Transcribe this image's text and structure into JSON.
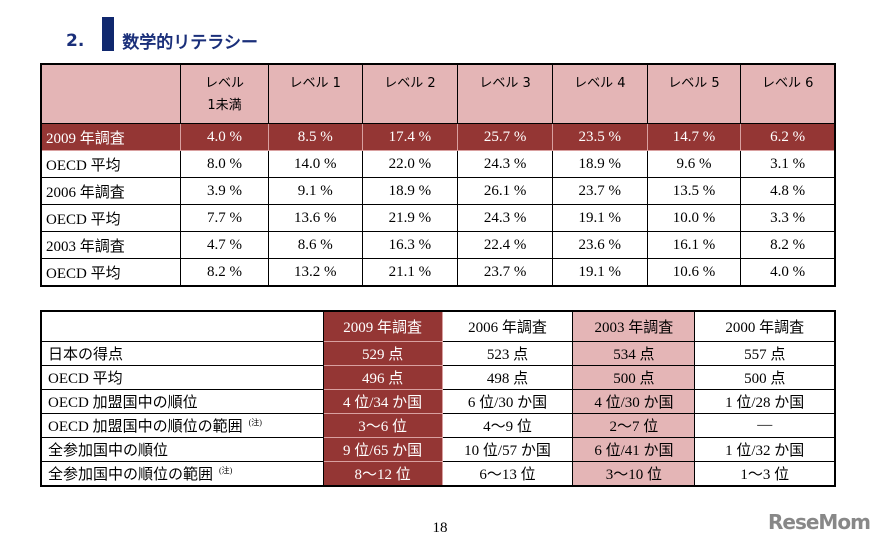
{
  "heading": {
    "number": "2.",
    "title": "数学的リテラシー"
  },
  "table1": {
    "headers": [
      "",
      "レベル\n1未満",
      "レベル 1",
      "レベル 2",
      "レベル 3",
      "レベル 4",
      "レベル 5",
      "レベル 6"
    ],
    "header_lines": [
      [
        "レベル",
        "1未満"
      ]
    ],
    "rows": [
      [
        "2009 年調査",
        "4.0 %",
        "8.5 %",
        "17.4 %",
        "25.7 %",
        "23.5 %",
        "14.7 %",
        "6.2 %"
      ],
      [
        "OECD 平均",
        "8.0 %",
        "14.0 %",
        "22.0 %",
        "24.3 %",
        "18.9 %",
        "9.6 %",
        "3.1 %"
      ],
      [
        "2006 年調査",
        "3.9 %",
        "9.1 %",
        "18.9 %",
        "26.1 %",
        "23.7 %",
        "13.5 %",
        "4.8 %"
      ],
      [
        "OECD 平均",
        "7.7 %",
        "13.6 %",
        "21.9 %",
        "24.3 %",
        "19.1 %",
        "10.0 %",
        "3.3 %"
      ],
      [
        "2003 年調査",
        "4.7 %",
        "8.6 %",
        "16.3 %",
        "22.4 %",
        "23.6 %",
        "16.1 %",
        "8.2 %"
      ],
      [
        "OECD 平均",
        "8.2 %",
        "13.2 %",
        "21.1 %",
        "23.7 %",
        "19.1 %",
        "10.6 %",
        "4.0 %"
      ]
    ]
  },
  "table2": {
    "headers": [
      "",
      "2009 年調査",
      "2006 年調査",
      "2003 年調査",
      "2000 年調査"
    ],
    "note": "(注)",
    "rows": [
      [
        "日本の得点",
        "529 点",
        "523 点",
        "534 点",
        "557 点"
      ],
      [
        "OECD 平均",
        "496 点",
        "498 点",
        "500 点",
        "500 点"
      ],
      [
        "OECD 加盟国中の順位",
        "4 位/34 か国",
        "6 位/30 か国",
        "4 位/30 か国",
        "1 位/28 か国"
      ],
      [
        "OECD 加盟国中の順位の範囲",
        "3～6 位",
        "4～9 位",
        "2～7 位",
        "—"
      ],
      [
        "全参加国中の順位",
        "9 位/65 か国",
        "10 位/57 か国",
        "6 位/41 か国",
        "1 位/32 か国"
      ],
      [
        "全参加国中の順位の範囲",
        "8～12 位",
        "6～13 位",
        "3～10 位",
        "1～3 位"
      ]
    ],
    "noted_rows": [
      3,
      5
    ]
  },
  "page_number": "18",
  "logo": "ReseMom"
}
